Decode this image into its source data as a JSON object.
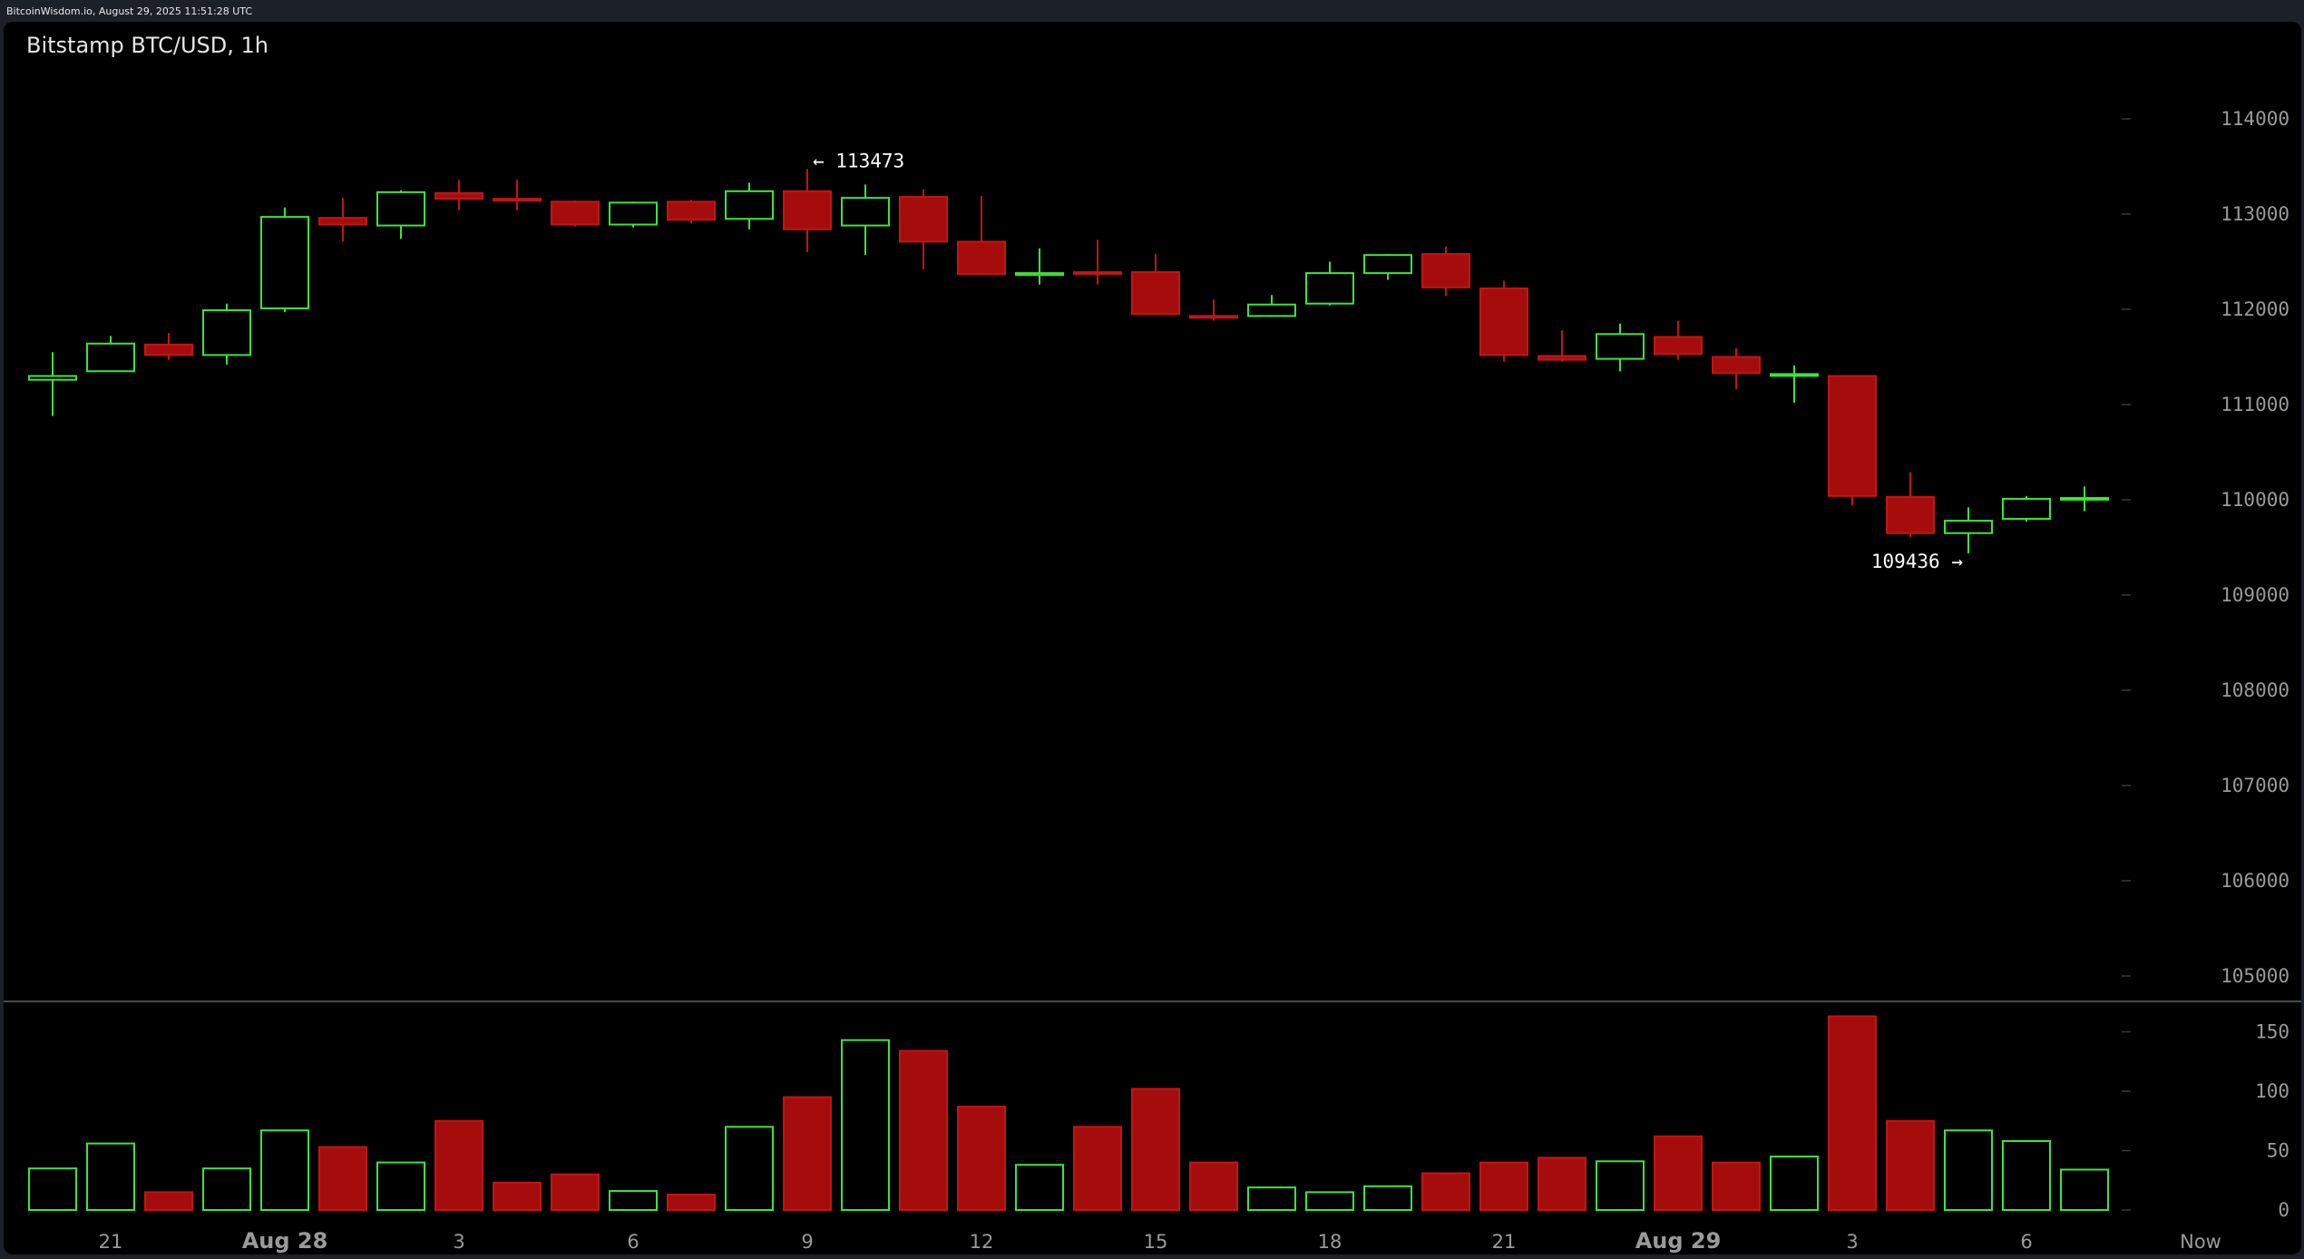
{
  "header": {
    "timestamp": "BitcoinWisdom.io, August 29, 2025 11:51:28 UTC",
    "title": "Bitstamp BTC/USD, 1h"
  },
  "colors": {
    "up": "#39e639",
    "down": "#a50d0d",
    "down_edge": "#c21515",
    "axis_text": "#9a9a9a",
    "divider": "#4b4b4b",
    "annotation": "#ffffff"
  },
  "chart_data": {
    "type": "candlestick",
    "title": "Bitstamp BTC/USD, 1h",
    "price_ticks": [
      105000,
      106000,
      107000,
      108000,
      109000,
      110000,
      111000,
      112000,
      113000,
      114000
    ],
    "volume_ticks": [
      0,
      50,
      100,
      150
    ],
    "x_ticks": [
      {
        "index": 1,
        "label": "21",
        "bold": false
      },
      {
        "index": 4,
        "label": "Aug 28",
        "bold": true
      },
      {
        "index": 7,
        "label": "3",
        "bold": false
      },
      {
        "index": 10,
        "label": "6",
        "bold": false
      },
      {
        "index": 13,
        "label": "9",
        "bold": false
      },
      {
        "index": 16,
        "label": "12",
        "bold": false
      },
      {
        "index": 19,
        "label": "15",
        "bold": false
      },
      {
        "index": 22,
        "label": "18",
        "bold": false
      },
      {
        "index": 25,
        "label": "21",
        "bold": false
      },
      {
        "index": 28,
        "label": "Aug 29",
        "bold": true
      },
      {
        "index": 31,
        "label": "3",
        "bold": false
      },
      {
        "index": 34,
        "label": "6",
        "bold": false
      },
      {
        "index": 37,
        "label": "Now",
        "bold": false
      }
    ],
    "annotations": [
      {
        "candle": 13,
        "price": 113473,
        "text": "← 113473",
        "side": "right"
      },
      {
        "candle": 33,
        "price": 109436,
        "text": "109436 →",
        "side": "left"
      }
    ],
    "candles": [
      {
        "o": 111260,
        "h": 111550,
        "l": 110880,
        "c": 111300,
        "v": 35
      },
      {
        "o": 111350,
        "h": 111720,
        "l": 111350,
        "c": 111640,
        "v": 56
      },
      {
        "o": 111630,
        "h": 111750,
        "l": 111470,
        "c": 111520,
        "v": 15
      },
      {
        "o": 111520,
        "h": 112060,
        "l": 111420,
        "c": 111990,
        "v": 35
      },
      {
        "o": 112010,
        "h": 113070,
        "l": 111970,
        "c": 112970,
        "v": 67
      },
      {
        "o": 112960,
        "h": 113170,
        "l": 112710,
        "c": 112890,
        "v": 53
      },
      {
        "o": 112880,
        "h": 113250,
        "l": 112740,
        "c": 113230,
        "v": 40
      },
      {
        "o": 113220,
        "h": 113360,
        "l": 113040,
        "c": 113160,
        "v": 75
      },
      {
        "o": 113160,
        "h": 113360,
        "l": 113040,
        "c": 113150,
        "v": 23
      },
      {
        "o": 113130,
        "h": 113140,
        "l": 112870,
        "c": 112890,
        "v": 30
      },
      {
        "o": 112890,
        "h": 113130,
        "l": 112860,
        "c": 113120,
        "v": 16
      },
      {
        "o": 113130,
        "h": 113150,
        "l": 112900,
        "c": 112940,
        "v": 13
      },
      {
        "o": 112950,
        "h": 113330,
        "l": 112840,
        "c": 113240,
        "v": 70
      },
      {
        "o": 113240,
        "h": 113473,
        "l": 112600,
        "c": 112840,
        "v": 95
      },
      {
        "o": 112880,
        "h": 113310,
        "l": 112570,
        "c": 113170,
        "v": 143
      },
      {
        "o": 113180,
        "h": 113260,
        "l": 112420,
        "c": 112710,
        "v": 134
      },
      {
        "o": 112710,
        "h": 113190,
        "l": 112360,
        "c": 112370,
        "v": 87
      },
      {
        "o": 112360,
        "h": 112640,
        "l": 112260,
        "c": 112380,
        "v": 38
      },
      {
        "o": 112390,
        "h": 112730,
        "l": 112260,
        "c": 112380,
        "v": 70
      },
      {
        "o": 112390,
        "h": 112580,
        "l": 111940,
        "c": 111950,
        "v": 102
      },
      {
        "o": 111930,
        "h": 112100,
        "l": 111880,
        "c": 111920,
        "v": 40
      },
      {
        "o": 111930,
        "h": 112150,
        "l": 111920,
        "c": 112050,
        "v": 19
      },
      {
        "o": 112060,
        "h": 112500,
        "l": 112040,
        "c": 112380,
        "v": 15
      },
      {
        "o": 112380,
        "h": 112580,
        "l": 112310,
        "c": 112570,
        "v": 20
      },
      {
        "o": 112580,
        "h": 112660,
        "l": 112140,
        "c": 112230,
        "v": 31
      },
      {
        "o": 112220,
        "h": 112300,
        "l": 111450,
        "c": 111520,
        "v": 40
      },
      {
        "o": 111510,
        "h": 111780,
        "l": 111450,
        "c": 111470,
        "v": 44
      },
      {
        "o": 111480,
        "h": 111850,
        "l": 111350,
        "c": 111740,
        "v": 41
      },
      {
        "o": 111710,
        "h": 111880,
        "l": 111470,
        "c": 111530,
        "v": 62
      },
      {
        "o": 111500,
        "h": 111590,
        "l": 111160,
        "c": 111330,
        "v": 40
      },
      {
        "o": 111320,
        "h": 111410,
        "l": 111020,
        "c": 111320,
        "v": 45
      },
      {
        "o": 111300,
        "h": 111310,
        "l": 109940,
        "c": 110040,
        "v": 163
      },
      {
        "o": 110030,
        "h": 110290,
        "l": 109610,
        "c": 109650,
        "v": 75
      },
      {
        "o": 109650,
        "h": 109920,
        "l": 109436,
        "c": 109780,
        "v": 67
      },
      {
        "o": 109800,
        "h": 110040,
        "l": 109770,
        "c": 110010,
        "v": 58
      },
      {
        "o": 110010,
        "h": 110140,
        "l": 109880,
        "c": 110020,
        "v": 34
      }
    ]
  }
}
